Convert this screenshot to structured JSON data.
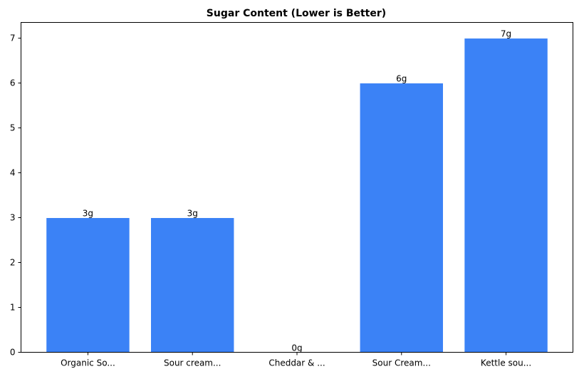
{
  "chart_data": {
    "type": "bar",
    "title": "Sugar Content (Lower is Better)",
    "xlabel": "",
    "ylabel": "",
    "categories": [
      "Organic So...",
      "Sour cream...",
      "Cheddar & ...",
      "Sour Cream...",
      "Kettle sou..."
    ],
    "values": [
      3,
      3,
      0,
      6,
      7
    ],
    "data_labels": [
      "3g",
      "3g",
      "0g",
      "6g",
      "7g"
    ],
    "ylim": [
      0,
      7.35
    ],
    "yticks": [
      "0",
      "1",
      "2",
      "3",
      "4",
      "5",
      "6",
      "7"
    ],
    "grid": false,
    "bar_color": "#3b82f6",
    "bar_edge_color": "#ffffff"
  }
}
